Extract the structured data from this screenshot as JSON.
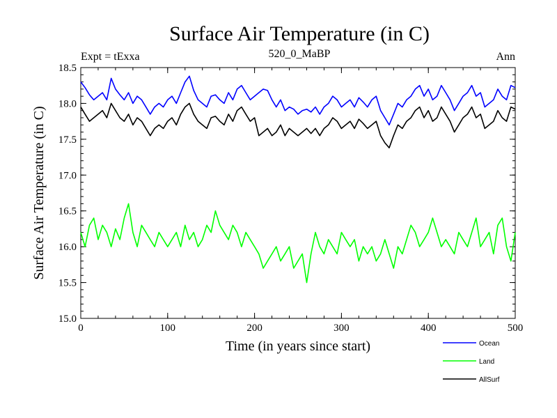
{
  "chart_data": {
    "type": "line",
    "title": "Surface Air Temperature (in C)",
    "subtitle": "520_0_MaBP",
    "left_label": "Expt = tExxa",
    "right_label": "Ann",
    "xlabel": "Time (in years since start)",
    "ylabel": "Surface Air Temperature (in C)",
    "xlim": [
      0,
      500
    ],
    "ylim": [
      15.0,
      18.5
    ],
    "xticks": [
      0,
      100,
      200,
      300,
      400,
      500
    ],
    "yticks": [
      15.0,
      15.5,
      16.0,
      16.5,
      17.0,
      17.5,
      18.0,
      18.5
    ],
    "x_start": 0,
    "x_step": 5,
    "series": [
      {
        "name": "Ocean",
        "color": "#0000ff",
        "values": [
          18.3,
          18.22,
          18.12,
          18.05,
          18.1,
          18.15,
          18.05,
          18.35,
          18.2,
          18.12,
          18.05,
          18.15,
          18.0,
          18.1,
          18.05,
          17.95,
          17.85,
          17.95,
          18.0,
          17.95,
          18.05,
          18.1,
          18.0,
          18.15,
          18.3,
          18.38,
          18.18,
          18.05,
          18.0,
          17.95,
          18.1,
          18.12,
          18.05,
          18.0,
          18.15,
          18.05,
          18.2,
          18.25,
          18.15,
          18.05,
          18.1,
          18.15,
          18.2,
          18.18,
          18.05,
          17.95,
          18.05,
          17.9,
          17.95,
          17.92,
          17.85,
          17.9,
          17.92,
          17.88,
          17.95,
          17.85,
          17.95,
          18.0,
          18.1,
          18.05,
          17.95,
          18.0,
          18.05,
          17.95,
          18.08,
          18.02,
          17.95,
          18.05,
          18.1,
          17.9,
          17.8,
          17.7,
          17.85,
          18.0,
          17.95,
          18.05,
          18.1,
          18.2,
          18.25,
          18.1,
          18.2,
          18.05,
          18.1,
          18.25,
          18.15,
          18.05,
          17.9,
          18.0,
          18.1,
          18.15,
          18.25,
          18.1,
          18.15,
          17.95,
          18.0,
          18.05,
          18.2,
          18.1,
          18.05,
          18.25,
          18.22
        ]
      },
      {
        "name": "Land",
        "color": "#00ff00",
        "values": [
          16.2,
          16.0,
          16.3,
          16.4,
          16.1,
          16.3,
          16.2,
          16.0,
          16.25,
          16.1,
          16.4,
          16.6,
          16.2,
          16.0,
          16.3,
          16.2,
          16.1,
          16.0,
          16.2,
          16.1,
          16.0,
          16.1,
          16.2,
          16.0,
          16.3,
          16.1,
          16.2,
          16.0,
          16.1,
          16.3,
          16.2,
          16.5,
          16.3,
          16.2,
          16.1,
          16.3,
          16.2,
          16.0,
          16.2,
          16.1,
          16.0,
          15.9,
          15.7,
          15.8,
          15.9,
          16.0,
          15.8,
          15.9,
          16.0,
          15.7,
          15.8,
          15.9,
          15.5,
          15.9,
          16.2,
          16.0,
          15.9,
          16.1,
          16.0,
          15.9,
          16.2,
          16.1,
          16.0,
          16.1,
          15.8,
          16.0,
          15.9,
          16.0,
          15.8,
          15.9,
          16.1,
          15.9,
          15.7,
          16.0,
          15.9,
          16.1,
          16.3,
          16.2,
          16.0,
          16.1,
          16.2,
          16.4,
          16.2,
          16.0,
          16.1,
          16.0,
          15.9,
          16.2,
          16.1,
          16.0,
          16.2,
          16.4,
          16.0,
          16.1,
          16.2,
          15.9,
          16.3,
          16.4,
          16.0,
          15.8,
          16.2
        ]
      },
      {
        "name": "AllSurf",
        "color": "#000000",
        "values": [
          17.95,
          17.85,
          17.75,
          17.8,
          17.85,
          17.9,
          17.8,
          18.0,
          17.9,
          17.8,
          17.75,
          17.85,
          17.7,
          17.8,
          17.75,
          17.65,
          17.55,
          17.65,
          17.7,
          17.65,
          17.75,
          17.8,
          17.7,
          17.85,
          17.95,
          18.0,
          17.85,
          17.75,
          17.7,
          17.65,
          17.8,
          17.82,
          17.75,
          17.7,
          17.85,
          17.75,
          17.9,
          17.95,
          17.85,
          17.75,
          17.8,
          17.55,
          17.6,
          17.65,
          17.55,
          17.6,
          17.7,
          17.55,
          17.65,
          17.6,
          17.55,
          17.6,
          17.65,
          17.58,
          17.65,
          17.55,
          17.65,
          17.7,
          17.8,
          17.75,
          17.65,
          17.7,
          17.75,
          17.65,
          17.78,
          17.72,
          17.65,
          17.7,
          17.75,
          17.55,
          17.45,
          17.38,
          17.55,
          17.7,
          17.65,
          17.75,
          17.8,
          17.9,
          17.95,
          17.8,
          17.9,
          17.75,
          17.8,
          17.95,
          17.85,
          17.75,
          17.6,
          17.7,
          17.8,
          17.85,
          17.95,
          17.8,
          17.85,
          17.65,
          17.7,
          17.75,
          17.9,
          17.8,
          17.75,
          17.95,
          17.92
        ]
      }
    ]
  }
}
